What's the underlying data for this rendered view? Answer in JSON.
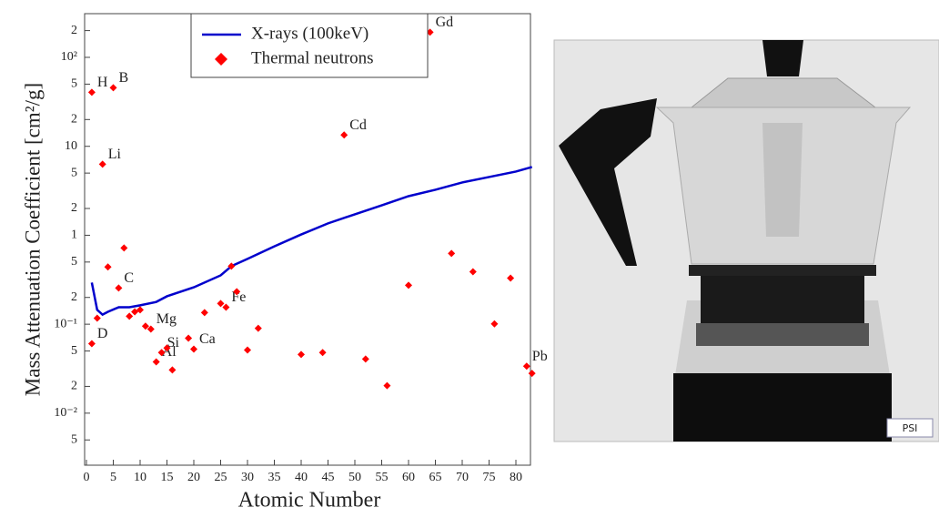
{
  "chart_data": {
    "type": "scatter",
    "xlabel": "Atomic Number",
    "ylabel": "Mass Attenuation Coefficient [cm²/g]",
    "xlim": [
      0,
      83
    ],
    "xticks": [
      0,
      5,
      10,
      15,
      20,
      25,
      30,
      35,
      40,
      45,
      50,
      55,
      60,
      65,
      70,
      75,
      80
    ],
    "ylim": [
      0.0026,
      310
    ],
    "log_y": true,
    "yticks": [
      {
        "value": 200,
        "label": "2"
      },
      {
        "value": 100,
        "label": "10²"
      },
      {
        "value": 50,
        "label": "5"
      },
      {
        "value": 20,
        "label": "2"
      },
      10,
      5,
      2,
      1,
      {
        "value": 0.5,
        "label": "5"
      },
      {
        "value": 0.2,
        "label": "2"
      },
      {
        "value": 0.1,
        "label": "10⁻¹"
      },
      {
        "value": 0.05,
        "label": "5"
      },
      {
        "value": 0.02,
        "label": "2"
      },
      {
        "value": 0.01,
        "label": "10⁻²"
      },
      {
        "value": 0.005,
        "label": "5"
      }
    ],
    "legend": "top",
    "series": [
      {
        "name": "X-rays (100keV)",
        "type": "line",
        "color": "#0000cc",
        "x": [
          1,
          2,
          3,
          4,
          6,
          8,
          10,
          13,
          15,
          20,
          25,
          27,
          30,
          35,
          40,
          45,
          50,
          55,
          60,
          65,
          70,
          75,
          80,
          83
        ],
        "values": [
          0.294,
          0.145,
          0.128,
          0.138,
          0.155,
          0.155,
          0.163,
          0.178,
          0.206,
          0.26,
          0.354,
          0.449,
          0.542,
          0.75,
          1.02,
          1.36,
          1.72,
          2.17,
          2.75,
          3.25,
          3.92,
          4.52,
          5.2,
          5.85
        ]
      },
      {
        "name": "Thermal neutrons",
        "type": "scatter",
        "color": "#ff0000",
        "x": [
          1,
          1,
          2,
          3,
          4,
          5,
          6,
          7,
          8,
          9,
          10,
          11,
          12,
          13,
          14,
          15,
          16,
          19,
          20,
          22,
          25,
          26,
          27,
          28,
          30,
          32,
          40,
          44,
          48,
          52,
          56,
          60,
          64,
          68,
          72,
          76,
          79,
          82,
          83
        ],
        "values": [
          40.5,
          0.0605,
          0.117,
          6.3,
          0.44,
          45.5,
          0.255,
          0.72,
          0.123,
          0.138,
          0.145,
          0.095,
          0.088,
          0.0377,
          0.048,
          0.054,
          0.0306,
          0.0697,
          0.0525,
          0.135,
          0.171,
          0.155,
          0.449,
          0.232,
          0.0513,
          0.09,
          0.0457,
          0.048,
          13.4,
          0.0406,
          0.0204,
          0.274,
          192,
          0.624,
          0.389,
          0.101,
          0.33,
          0.0337,
          0.028
        ],
        "labels": [
          "H",
          "D",
          null,
          "Li",
          null,
          "B",
          "C",
          null,
          null,
          null,
          null,
          null,
          "Mg",
          "Al",
          "Si",
          null,
          null,
          null,
          "Ca",
          null,
          null,
          "Fe",
          null,
          null,
          null,
          null,
          null,
          null,
          "Cd",
          null,
          null,
          null,
          "Gd",
          null,
          null,
          null,
          null,
          "Pb",
          null
        ]
      }
    ]
  },
  "photo": {
    "logo": "PSI"
  }
}
